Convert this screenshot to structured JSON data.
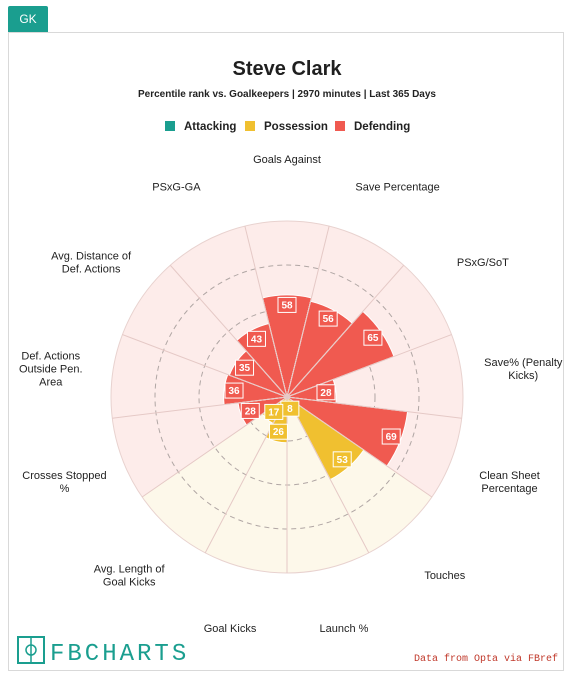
{
  "tab": {
    "label": "GK"
  },
  "brand": {
    "name": "FBCHARTS"
  },
  "source": "Data from Opta via FBref",
  "colors": {
    "Attacking": "#1a9e8f",
    "Possession": "#f0c030",
    "Defending": "#f05a50",
    "bg_possession": "#fdf8ea",
    "bg_defending": "#fdecea"
  },
  "chart_data": {
    "type": "polar-area",
    "title": "Steve Clark",
    "subtitle": "Percentile rank vs. Goalkeepers | 2970 minutes | Last 365 Days",
    "rlim": [
      0,
      100
    ],
    "legend": [
      "Attacking",
      "Possession",
      "Defending"
    ],
    "legend_position": "top",
    "categories": [
      {
        "label": "Goals Against",
        "value": 58,
        "group": "Defending"
      },
      {
        "label": "Save Percentage",
        "value": 56,
        "group": "Defending"
      },
      {
        "label": "PSxG/SoT",
        "value": 65,
        "group": "Defending"
      },
      {
        "label": "Save% (Penalty Kicks)",
        "value": 28,
        "group": "Defending"
      },
      {
        "label": "Clean Sheet Percentage",
        "value": 69,
        "group": "Defending"
      },
      {
        "label": "Touches",
        "value": 53,
        "group": "Possession"
      },
      {
        "label": "Launch %",
        "value": 8,
        "group": "Possession"
      },
      {
        "label": "Goal Kicks",
        "value": 26,
        "group": "Possession"
      },
      {
        "label": "Avg. Length of Goal Kicks",
        "value": 17,
        "group": "Possession"
      },
      {
        "label": "Crosses Stopped %",
        "value": 28,
        "group": "Defending"
      },
      {
        "label": "Def. Actions Outside Pen. Area",
        "value": 36,
        "group": "Defending"
      },
      {
        "label": "Avg. Distance of Def. Actions",
        "value": 35,
        "group": "Defending"
      },
      {
        "label": "PSxG-GA",
        "value": 43,
        "group": "Defending"
      }
    ]
  }
}
